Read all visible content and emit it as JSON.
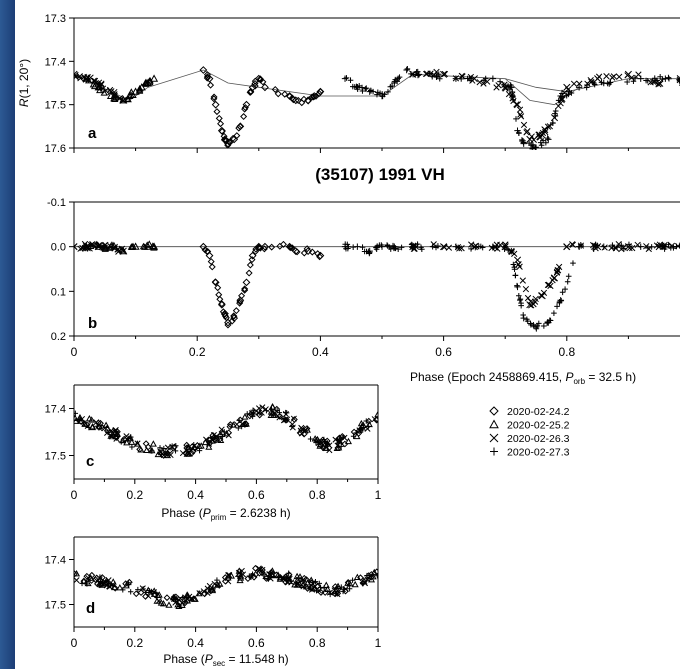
{
  "figure_title": "(35107) 1991 VH",
  "legend": {
    "entries": [
      {
        "label": "2020-02-24.2",
        "marker": "diamond"
      },
      {
        "label": "2020-02-25.2",
        "marker": "triangle"
      },
      {
        "label": "2020-02-26.3",
        "marker": "x"
      },
      {
        "label": "2020-02-27.3",
        "marker": "plus"
      }
    ]
  },
  "colors": {
    "data": "#000000",
    "background": "#ffffff",
    "slide_background": "#0d1e40"
  },
  "chart_data": [
    {
      "id": "a",
      "panel_label": "a",
      "type": "scatter",
      "ylabel_prefix": "R",
      "ylabel_suffix": "(1, 20°)",
      "ylim": [
        17.3,
        17.6
      ],
      "y_inverted": true,
      "yticks": [
        "17.3",
        "17.4",
        "17.5",
        "17.6"
      ],
      "xlim": [
        0,
        1
      ],
      "model_curves": "thin lines following the lightcurve",
      "series": [
        {
          "name": "2020-02-24.2",
          "marker": "diamond",
          "x": [
            0.21,
            0.22,
            0.23,
            0.24,
            0.245,
            0.25,
            0.26,
            0.27,
            0.28,
            0.29,
            0.3,
            0.31,
            0.35,
            0.36,
            0.38,
            0.39,
            0.4
          ],
          "y": [
            17.42,
            17.44,
            17.5,
            17.56,
            17.58,
            17.59,
            17.58,
            17.55,
            17.5,
            17.46,
            17.44,
            17.46,
            17.48,
            17.49,
            17.49,
            17.48,
            17.47
          ]
        },
        {
          "name": "2020-02-25.2",
          "marker": "triangle",
          "x": [
            0.02,
            0.04,
            0.06,
            0.08,
            0.09,
            0.1,
            0.11,
            0.12,
            0.13
          ],
          "y": [
            17.44,
            17.46,
            17.48,
            17.49,
            17.48,
            17.47,
            17.46,
            17.45,
            17.44
          ]
        },
        {
          "name": "2020-02-26.3",
          "marker": "x",
          "x": [
            0.0,
            0.02,
            0.04,
            0.06,
            0.08,
            0.55,
            0.6,
            0.65,
            0.7,
            0.72,
            0.74,
            0.76,
            0.78,
            0.8,
            0.85,
            0.9,
            0.95,
            1.0
          ],
          "y": [
            17.43,
            17.44,
            17.45,
            17.47,
            17.49,
            17.43,
            17.43,
            17.44,
            17.46,
            17.5,
            17.58,
            17.57,
            17.53,
            17.46,
            17.44,
            17.43,
            17.45,
            17.44
          ]
        },
        {
          "name": "2020-02-27.3",
          "marker": "plus",
          "x": [
            0.44,
            0.46,
            0.48,
            0.5,
            0.52,
            0.54,
            0.56,
            0.62,
            0.68,
            0.71,
            0.72,
            0.73,
            0.75,
            0.77,
            0.79,
            0.82,
            0.86,
            0.92,
            0.96,
            0.99
          ],
          "y": [
            17.44,
            17.46,
            17.47,
            17.48,
            17.45,
            17.42,
            17.43,
            17.44,
            17.44,
            17.46,
            17.56,
            17.59,
            17.6,
            17.58,
            17.48,
            17.46,
            17.45,
            17.44,
            17.44,
            17.45
          ]
        }
      ]
    },
    {
      "id": "b",
      "panel_label": "b",
      "type": "scatter",
      "ylim": [
        -0.1,
        0.2
      ],
      "y_inverted": true,
      "yticks": [
        "-0.1",
        "0.0",
        "0.1",
        "0.2"
      ],
      "xlim": [
        0,
        1
      ],
      "xticks": [
        "0",
        "0.2",
        "0.4",
        "0.6",
        "0.8",
        "1"
      ],
      "xlabel_prefix": "Phase (Epoch 2458869.415, ",
      "xlabel_var": "P",
      "xlabel_sub": "orb",
      "xlabel_suffix": " = 32.5 h)",
      "series": [
        {
          "name": "2020-02-24.2",
          "marker": "diamond",
          "x": [
            0.21,
            0.22,
            0.23,
            0.24,
            0.245,
            0.25,
            0.26,
            0.27,
            0.28,
            0.29,
            0.3,
            0.31,
            0.35,
            0.36,
            0.38,
            0.4
          ],
          "y": [
            0.0,
            0.02,
            0.08,
            0.13,
            0.15,
            0.17,
            0.16,
            0.12,
            0.08,
            0.02,
            0.0,
            0.0,
            0.0,
            0.01,
            0.01,
            0.02
          ]
        },
        {
          "name": "2020-02-25.2",
          "marker": "triangle",
          "x": [
            0.02,
            0.04,
            0.06,
            0.08,
            0.1,
            0.12,
            0.13
          ],
          "y": [
            0.0,
            0.0,
            0.0,
            0.01,
            0.0,
            0.0,
            0.0
          ]
        },
        {
          "name": "2020-02-26.3",
          "marker": "x",
          "x": [
            0.0,
            0.02,
            0.04,
            0.06,
            0.08,
            0.55,
            0.6,
            0.65,
            0.7,
            0.72,
            0.74,
            0.76,
            0.78,
            0.8,
            0.85,
            0.9,
            0.95,
            1.0
          ],
          "y": [
            0.0,
            0.0,
            0.0,
            0.0,
            0.01,
            0.0,
            0.0,
            0.0,
            0.0,
            0.03,
            0.13,
            0.11,
            0.07,
            0.0,
            0.0,
            0.0,
            0.0,
            0.0
          ]
        },
        {
          "name": "2020-02-27.3",
          "marker": "plus",
          "x": [
            0.44,
            0.46,
            0.48,
            0.5,
            0.52,
            0.55,
            0.62,
            0.68,
            0.71,
            0.72,
            0.73,
            0.75,
            0.77,
            0.79,
            0.82,
            0.86,
            0.92,
            0.96,
            0.99
          ],
          "y": [
            0.0,
            0.0,
            0.01,
            0.0,
            0.0,
            0.0,
            0.0,
            0.0,
            0.01,
            0.09,
            0.16,
            0.18,
            0.17,
            0.12,
            0.0,
            0.0,
            0.0,
            0.0,
            0.0
          ]
        }
      ]
    },
    {
      "id": "c",
      "panel_label": "c",
      "type": "scatter",
      "ylim": [
        17.35,
        17.55
      ],
      "y_inverted": true,
      "yticks": [
        "17.4",
        "17.5"
      ],
      "xlim": [
        0,
        1
      ],
      "xticks": [
        "0",
        "0.2",
        "0.4",
        "0.6",
        "0.8",
        "1"
      ],
      "xlabel_prefix": "Phase (",
      "xlabel_var": "P",
      "xlabel_sub": "prim",
      "xlabel_suffix": " = 2.6238 h)",
      "curve": {
        "x": [
          0.0,
          0.05,
          0.1,
          0.15,
          0.2,
          0.25,
          0.3,
          0.35,
          0.4,
          0.45,
          0.5,
          0.55,
          0.6,
          0.65,
          0.7,
          0.75,
          0.8,
          0.85,
          0.9,
          0.95,
          1.0
        ],
        "y": [
          17.42,
          17.43,
          17.445,
          17.46,
          17.475,
          17.485,
          17.49,
          17.49,
          17.485,
          17.47,
          17.45,
          17.43,
          17.41,
          17.405,
          17.42,
          17.445,
          17.47,
          17.48,
          17.465,
          17.44,
          17.42
        ]
      }
    },
    {
      "id": "d",
      "panel_label": "d",
      "type": "scatter",
      "ylim": [
        17.35,
        17.55
      ],
      "y_inverted": true,
      "yticks": [
        "17.4",
        "17.5"
      ],
      "xlim": [
        0,
        1
      ],
      "xticks": [
        "0",
        "0.2",
        "0.4",
        "0.6",
        "0.8",
        "1"
      ],
      "xlabel_prefix": "Phase (",
      "xlabel_var": "P",
      "xlabel_sub": "sec",
      "xlabel_suffix": " = 11.548 h)",
      "curve": {
        "x": [
          0.0,
          0.05,
          0.1,
          0.15,
          0.2,
          0.25,
          0.3,
          0.35,
          0.4,
          0.45,
          0.5,
          0.55,
          0.6,
          0.65,
          0.7,
          0.75,
          0.8,
          0.85,
          0.9,
          0.95,
          1.0
        ],
        "y": [
          17.44,
          17.445,
          17.45,
          17.455,
          17.465,
          17.475,
          17.49,
          17.495,
          17.48,
          17.46,
          17.445,
          17.435,
          17.43,
          17.435,
          17.44,
          17.45,
          17.46,
          17.47,
          17.46,
          17.445,
          17.435
        ]
      }
    }
  ]
}
